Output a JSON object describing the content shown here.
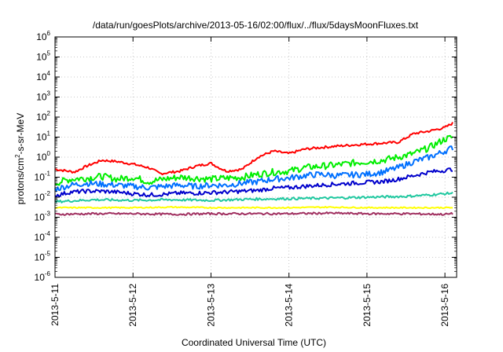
{
  "chart_data": {
    "type": "line",
    "title": "/data/run/goesPlots/archive/2013-05-16/02:00/flux/../flux/5daysMoonFluxes.txt",
    "xlabel": "Coordinated Universal Time (UTC)",
    "ylabel": "protons/cm²-s-sr-MeV",
    "ylabel_parts": {
      "pre": "protons/cm",
      "sup": "2",
      "post": "-s-sr-MeV"
    },
    "yscale": "log",
    "ylim_exp": [
      -6,
      6
    ],
    "xlim_days": [
      0,
      5.15
    ],
    "grid": true,
    "x_tick_labels": [
      "2013-5-11",
      "2013-5-12",
      "2013-5-13",
      "2013-5-14",
      "2013-5-15",
      "2013-5-16"
    ],
    "y_tick_labels": [
      {
        "base": "10",
        "exp": "-6"
      },
      {
        "base": "10",
        "exp": "-5"
      },
      {
        "base": "10",
        "exp": "-4"
      },
      {
        "base": "10",
        "exp": "-3"
      },
      {
        "base": "10",
        "exp": "-2"
      },
      {
        "base": "10",
        "exp": "-1"
      },
      {
        "base": "10",
        "exp": "0"
      },
      {
        "base": "10",
        "exp": "1"
      },
      {
        "base": "10",
        "exp": "2"
      },
      {
        "base": "10",
        "exp": "3"
      },
      {
        "base": "10",
        "exp": "4"
      },
      {
        "base": "10",
        "exp": "5"
      },
      {
        "base": "10",
        "exp": "6"
      }
    ],
    "series": [
      {
        "color": "#ff0000",
        "x": [
          0,
          0.25,
          0.4,
          0.6,
          0.8,
          1.0,
          1.2,
          1.35,
          1.6,
          1.8,
          2.0,
          2.1,
          2.2,
          2.4,
          2.6,
          2.8,
          3.0,
          3.2,
          3.4,
          3.6,
          3.8,
          4.0,
          4.2,
          4.4,
          4.6,
          4.8,
          5.0,
          5.1
        ],
        "y": [
          0.25,
          0.18,
          0.35,
          0.7,
          0.6,
          0.45,
          0.3,
          0.15,
          0.2,
          0.35,
          0.5,
          0.3,
          0.2,
          0.25,
          1.0,
          2.0,
          1.5,
          2.5,
          3.0,
          3.5,
          4.0,
          4.5,
          5.0,
          5.5,
          15,
          20,
          30,
          50
        ]
      },
      {
        "color": "#00ee00",
        "x": [
          0,
          0.2,
          0.4,
          0.6,
          0.8,
          1.0,
          1.2,
          1.4,
          1.6,
          1.8,
          2.0,
          2.2,
          2.4,
          2.6,
          2.8,
          3.0,
          3.2,
          3.4,
          3.6,
          3.8,
          4.0,
          4.2,
          4.4,
          4.6,
          4.8,
          5.0,
          5.1
        ],
        "y": [
          0.05,
          0.08,
          0.09,
          0.11,
          0.08,
          0.1,
          0.06,
          0.08,
          0.1,
          0.09,
          0.08,
          0.09,
          0.1,
          0.14,
          0.18,
          0.2,
          0.3,
          0.35,
          0.4,
          0.5,
          0.6,
          0.7,
          1.0,
          1.5,
          3.0,
          8.0,
          10.0
        ]
      },
      {
        "color": "#0070ff",
        "x": [
          0,
          0.2,
          0.4,
          0.6,
          0.8,
          1.0,
          1.2,
          1.4,
          1.6,
          1.8,
          2.0,
          2.2,
          2.4,
          2.6,
          2.8,
          3.0,
          3.2,
          3.4,
          3.6,
          3.8,
          4.0,
          4.2,
          4.4,
          4.6,
          4.8,
          5.0,
          5.1
        ],
        "y": [
          0.025,
          0.04,
          0.05,
          0.045,
          0.04,
          0.035,
          0.03,
          0.035,
          0.04,
          0.035,
          0.04,
          0.04,
          0.05,
          0.06,
          0.08,
          0.09,
          0.12,
          0.14,
          0.12,
          0.13,
          0.14,
          0.18,
          0.3,
          0.6,
          1.0,
          2.0,
          3.0
        ]
      },
      {
        "color": "#0000cc",
        "x": [
          0,
          0.2,
          0.4,
          0.6,
          0.8,
          1.0,
          1.2,
          1.4,
          1.6,
          1.8,
          2.0,
          2.2,
          2.4,
          2.6,
          2.8,
          3.0,
          3.2,
          3.4,
          3.6,
          3.8,
          4.0,
          4.2,
          4.4,
          4.6,
          4.8,
          5.0,
          5.1
        ],
        "y": [
          0.012,
          0.018,
          0.02,
          0.02,
          0.018,
          0.015,
          0.013,
          0.014,
          0.016,
          0.016,
          0.017,
          0.018,
          0.02,
          0.022,
          0.028,
          0.03,
          0.035,
          0.04,
          0.045,
          0.05,
          0.055,
          0.06,
          0.08,
          0.12,
          0.18,
          0.22,
          0.25
        ]
      },
      {
        "color": "#20c8a0",
        "x": [
          0,
          0.5,
          1.0,
          1.5,
          2.0,
          2.5,
          3.0,
          3.5,
          4.0,
          4.5,
          4.8,
          5.0,
          5.1
        ],
        "y": [
          0.006,
          0.0075,
          0.007,
          0.0075,
          0.007,
          0.008,
          0.0085,
          0.009,
          0.01,
          0.011,
          0.013,
          0.015,
          0.016
        ]
      },
      {
        "color": "#ffff00",
        "x": [
          0,
          0.5,
          1.0,
          1.5,
          2.0,
          2.5,
          3.0,
          3.5,
          4.0,
          4.5,
          5.0,
          5.1
        ],
        "y": [
          0.003,
          0.003,
          0.003,
          0.0032,
          0.003,
          0.003,
          0.003,
          0.0032,
          0.003,
          0.003,
          0.003,
          0.003
        ]
      },
      {
        "color": "#a03060",
        "x": [
          0,
          0.5,
          1.0,
          1.5,
          2.0,
          2.5,
          3.0,
          3.5,
          4.0,
          4.5,
          5.0,
          5.1
        ],
        "y": [
          0.0014,
          0.0015,
          0.0015,
          0.0014,
          0.0015,
          0.0015,
          0.0015,
          0.0016,
          0.0015,
          0.0015,
          0.0014,
          0.0015
        ]
      }
    ]
  }
}
